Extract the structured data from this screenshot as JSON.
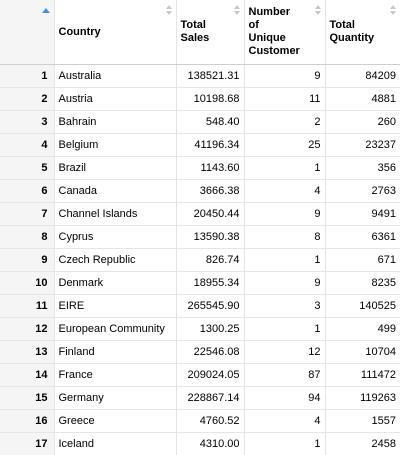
{
  "columns": [
    "",
    "Country",
    "Total Sales",
    "Number of Unique Customer",
    "Total Quantity"
  ],
  "header_lines": {
    "country": [
      "Country"
    ],
    "total_sales": [
      "Total",
      "Sales"
    ],
    "unique_customers": [
      "Number",
      "of",
      "Unique",
      "Customer"
    ],
    "total_quantity": [
      "Total",
      "Quantity"
    ]
  },
  "rows": [
    {
      "idx": "1",
      "country": "Australia",
      "sales": "138521.31",
      "customers": "9",
      "quantity": "84209"
    },
    {
      "idx": "2",
      "country": "Austria",
      "sales": "10198.68",
      "customers": "11",
      "quantity": "4881"
    },
    {
      "idx": "3",
      "country": "Bahrain",
      "sales": "548.40",
      "customers": "2",
      "quantity": "260"
    },
    {
      "idx": "4",
      "country": "Belgium",
      "sales": "41196.34",
      "customers": "25",
      "quantity": "23237"
    },
    {
      "idx": "5",
      "country": "Brazil",
      "sales": "1143.60",
      "customers": "1",
      "quantity": "356"
    },
    {
      "idx": "6",
      "country": "Canada",
      "sales": "3666.38",
      "customers": "4",
      "quantity": "2763"
    },
    {
      "idx": "7",
      "country": "Channel Islands",
      "sales": "20450.44",
      "customers": "9",
      "quantity": "9491"
    },
    {
      "idx": "8",
      "country": "Cyprus",
      "sales": "13590.38",
      "customers": "8",
      "quantity": "6361"
    },
    {
      "idx": "9",
      "country": "Czech Republic",
      "sales": "826.74",
      "customers": "1",
      "quantity": "671"
    },
    {
      "idx": "10",
      "country": "Denmark",
      "sales": "18955.34",
      "customers": "9",
      "quantity": "8235"
    },
    {
      "idx": "11",
      "country": "EIRE",
      "sales": "265545.90",
      "customers": "3",
      "quantity": "140525"
    },
    {
      "idx": "12",
      "country": "European Community",
      "sales": "1300.25",
      "customers": "1",
      "quantity": "499"
    },
    {
      "idx": "13",
      "country": "Finland",
      "sales": "22546.08",
      "customers": "12",
      "quantity": "10704"
    },
    {
      "idx": "14",
      "country": "France",
      "sales": "209024.05",
      "customers": "87",
      "quantity": "111472"
    },
    {
      "idx": "15",
      "country": "Germany",
      "sales": "228867.14",
      "customers": "94",
      "quantity": "119263"
    },
    {
      "idx": "16",
      "country": "Greece",
      "sales": "4760.52",
      "customers": "4",
      "quantity": "1557"
    },
    {
      "idx": "17",
      "country": "Iceland",
      "sales": "4310.00",
      "customers": "1",
      "quantity": "2458"
    }
  ]
}
